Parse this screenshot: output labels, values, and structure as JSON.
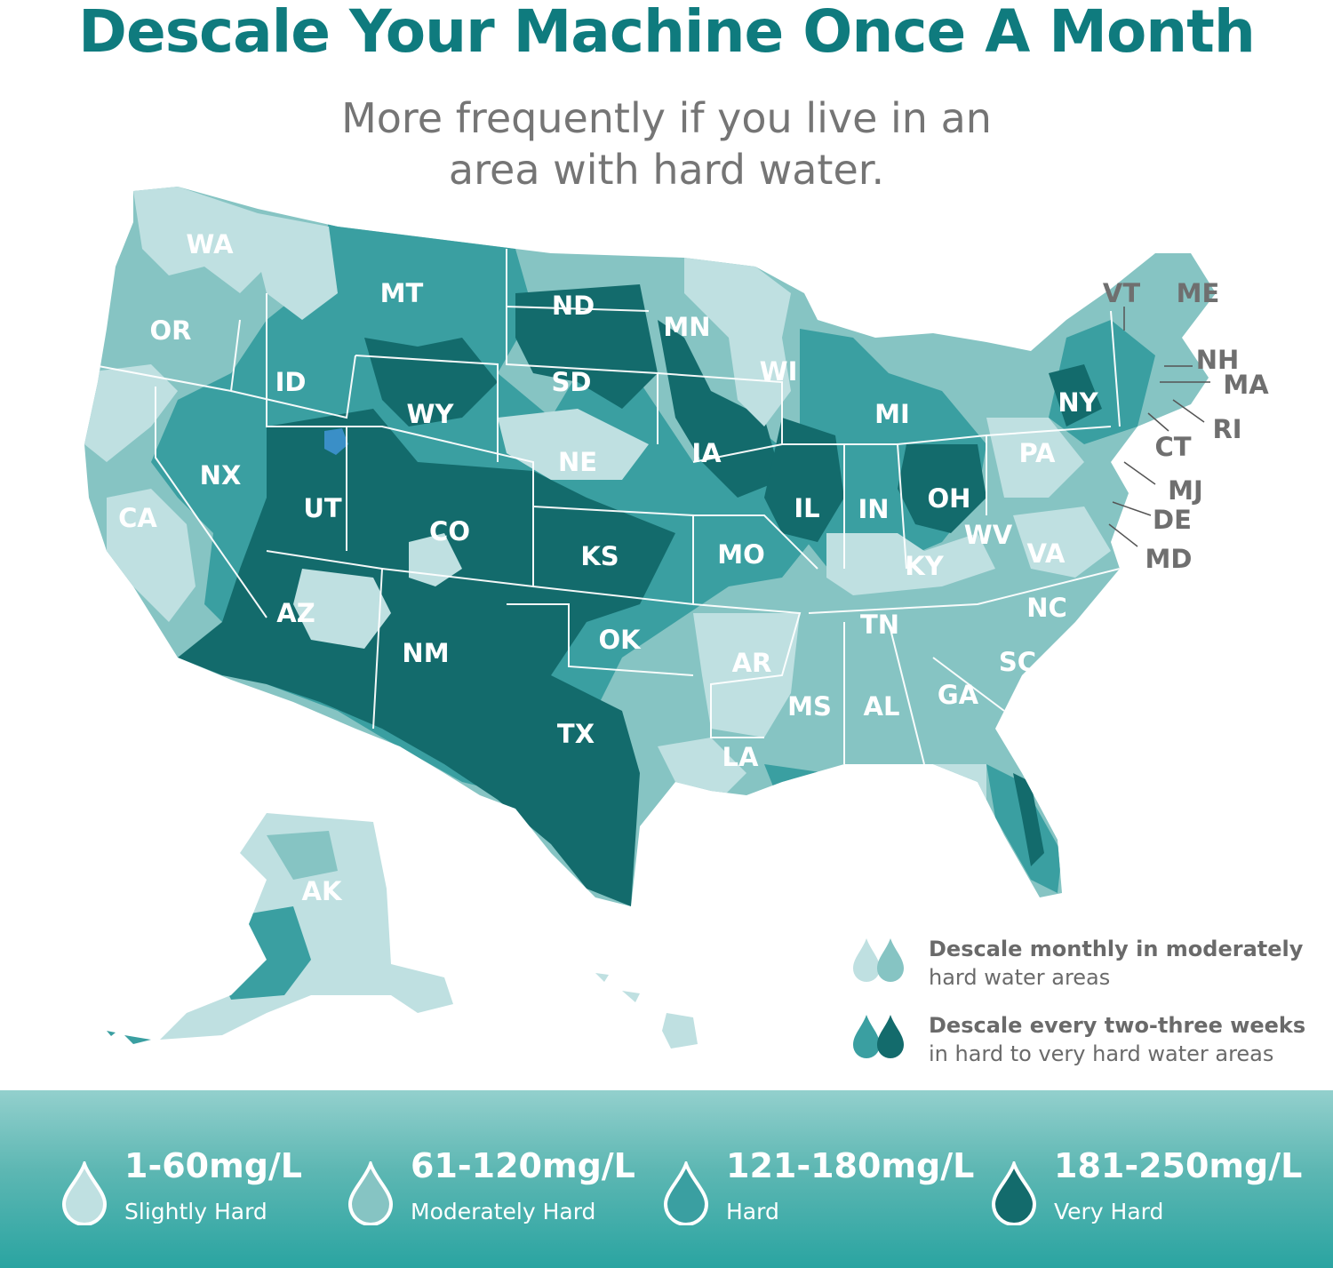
{
  "header": {
    "title": "Descale Your Machine Once A Month",
    "subtitle_line1": "More frequently if you live in an",
    "subtitle_line2": "area with hard water."
  },
  "colors": {
    "slightly_hard": "#bfe0e1",
    "moderately_hard": "#86c4c3",
    "hard": "#3a9fa1",
    "very_hard": "#136b6c",
    "title": "#0f7b7e"
  },
  "map": {
    "state_labels": [
      "WA",
      "OR",
      "CA",
      "ID",
      "MT",
      "NX",
      "UT",
      "WY",
      "ND",
      "SD",
      "NE",
      "CO",
      "AZ",
      "NM",
      "KS",
      "OK",
      "TX",
      "MN",
      "IA",
      "MO",
      "AR",
      "LA",
      "WI",
      "IL",
      "IN",
      "MI",
      "OH",
      "KY",
      "TN",
      "MS",
      "AL",
      "GA",
      "SC",
      "NC",
      "VA",
      "WV",
      "PA",
      "NY",
      "AK"
    ],
    "northeast_labels": [
      "VT",
      "ME",
      "NH",
      "MA",
      "RI",
      "CT",
      "MJ",
      "DE",
      "MD"
    ]
  },
  "legend": [
    {
      "icon": "light-drops-icon",
      "bold": "Descale monthly in moderately",
      "text": "hard water areas"
    },
    {
      "icon": "dark-drops-icon",
      "bold": "Descale every two-three weeks",
      "text": "in hard to very hard water areas"
    }
  ],
  "scale": [
    {
      "range": "1-60mg/L",
      "label": "Slightly Hard",
      "color": "#bfe0e1"
    },
    {
      "range": "61-120mg/L",
      "label": "Moderately Hard",
      "color": "#86c4c3"
    },
    {
      "range": "121-180mg/L",
      "label": "Hard",
      "color": "#3a9fa1"
    },
    {
      "range": "181-250mg/L",
      "label": "Very Hard",
      "color": "#136b6c"
    }
  ]
}
